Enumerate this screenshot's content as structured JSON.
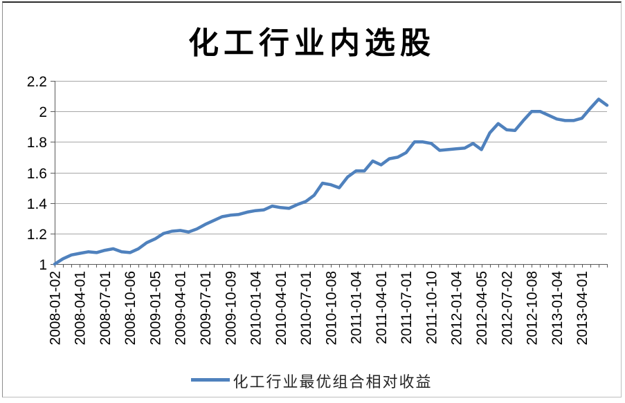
{
  "chart_data": {
    "type": "line",
    "title": "化工行业内选股",
    "xlabel": "",
    "ylabel": "",
    "ylim": [
      1,
      2.2
    ],
    "yticks": [
      "1",
      "1.2",
      "1.4",
      "1.6",
      "1.8",
      "2",
      "2.2"
    ],
    "grid": "horizontal-only",
    "legend_position": "bottom",
    "x_labels": [
      "2008-01-02",
      "2008-04-01",
      "2008-07-01",
      "2008-10-06",
      "2009-01-05",
      "2009-04-01",
      "2009-07-01",
      "2009-10-09",
      "2010-01-04",
      "2010-04-01",
      "2010-07-01",
      "2010-10-08",
      "2011-01-04",
      "2011-04-01",
      "2011-07-01",
      "2011-10-10",
      "2012-01-04",
      "2012-04-05",
      "2012-07-02",
      "2012-10-08",
      "2013-01-04",
      "2013-04-01"
    ],
    "label_every_n_points": 3,
    "series": [
      {
        "name": "化工行业最优组合相对收益",
        "color": "#4F81BD",
        "values": [
          1.0,
          1.035,
          1.06,
          1.07,
          1.08,
          1.075,
          1.09,
          1.1,
          1.08,
          1.075,
          1.1,
          1.14,
          1.165,
          1.2,
          1.215,
          1.22,
          1.21,
          1.23,
          1.26,
          1.285,
          1.31,
          1.32,
          1.325,
          1.34,
          1.35,
          1.355,
          1.38,
          1.37,
          1.365,
          1.39,
          1.41,
          1.45,
          1.53,
          1.52,
          1.5,
          1.57,
          1.61,
          1.61,
          1.675,
          1.65,
          1.69,
          1.7,
          1.73,
          1.8,
          1.8,
          1.79,
          1.745,
          1.75,
          1.755,
          1.76,
          1.79,
          1.75,
          1.86,
          1.92,
          1.88,
          1.875,
          1.94,
          2.0,
          2.0,
          1.975,
          1.95,
          1.94,
          1.94,
          1.955,
          2.02,
          2.08,
          2.04
        ]
      }
    ],
    "colors": {
      "line": "#4F81BD",
      "gridline": "#A6A6A6",
      "axis": "#595959",
      "tick_text": "#000000"
    }
  }
}
